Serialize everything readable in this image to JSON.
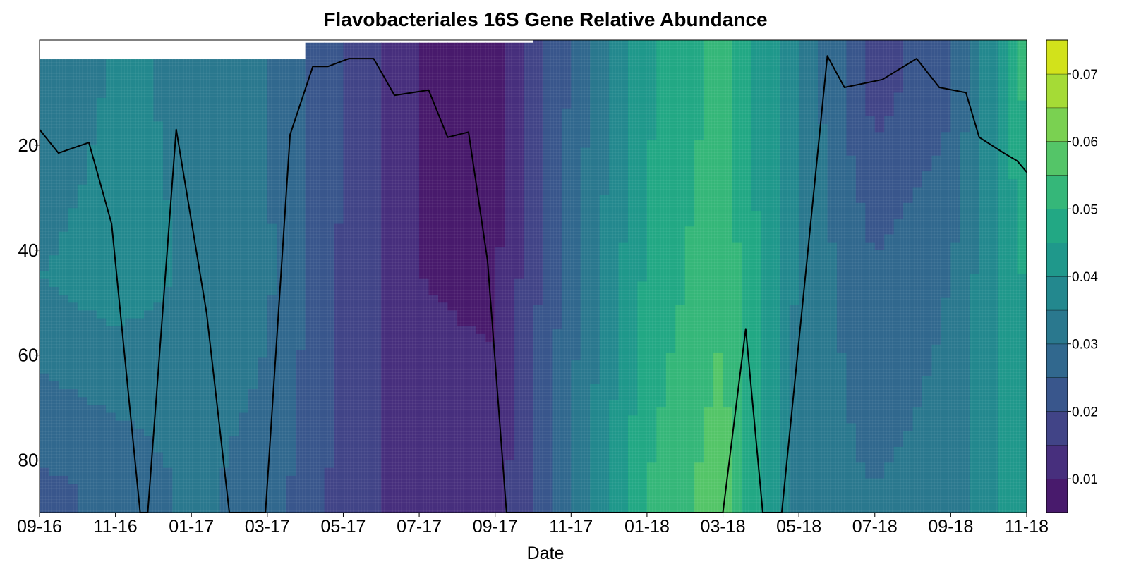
{
  "chart_data": {
    "type": "heatmap",
    "title": "Flavobacteriales 16S Gene Relative Abundance",
    "xlabel": "Date",
    "ylabel": "",
    "x_tick_labels": [
      "09-16",
      "11-16",
      "01-17",
      "03-17",
      "05-17",
      "07-17",
      "09-17",
      "11-17",
      "01-18",
      "03-18",
      "05-18",
      "07-18",
      "09-18",
      "11-18"
    ],
    "x_tick_values_month_index": [
      0,
      2,
      4,
      6,
      8,
      10,
      12,
      14,
      16,
      18,
      20,
      22,
      24,
      26
    ],
    "x_range_month_index": [
      0,
      26
    ],
    "y_tick_labels": [
      "20",
      "40",
      "60",
      "80"
    ],
    "y_tick_values": [
      20,
      40,
      60,
      80
    ],
    "y_range": [
      0,
      90
    ],
    "y_inverted": true,
    "colorbar": {
      "colormap": "viridis",
      "levels": [
        0.005,
        0.01,
        0.015,
        0.02,
        0.025,
        0.03,
        0.035,
        0.04,
        0.045,
        0.05,
        0.055,
        0.06,
        0.065,
        0.07,
        0.075
      ],
      "tick_labels": [
        "0.01",
        "0.02",
        "0.03",
        "0.04",
        "0.05",
        "0.06",
        "0.07"
      ],
      "tick_values": [
        0.01,
        0.02,
        0.03,
        0.04,
        0.05,
        0.06,
        0.07
      ],
      "colors": [
        "#440154",
        "#481a6c",
        "#472f7d",
        "#414487",
        "#39568c",
        "#31688e",
        "#2a788e",
        "#23888e",
        "#1f988b",
        "#22a884",
        "#35b779",
        "#54c568",
        "#7ad151",
        "#a5db36",
        "#d2e21b",
        "#fde725"
      ]
    },
    "heatmap_columns_month_index": [
      0,
      2,
      4,
      6,
      8,
      10,
      12,
      14,
      16,
      18,
      20,
      22,
      24,
      26
    ],
    "heatmap_columns_top_depth": [
      3.5,
      3.5,
      3.5,
      3.5,
      0.5,
      0.5,
      0.5,
      -0.5,
      -0.5,
      -0.5,
      -2,
      -2,
      -2,
      -2
    ],
    "heatmap_values_by_column": [
      [
        0.03,
        0.035,
        0.024
      ],
      [
        0.036,
        0.038,
        0.026
      ],
      [
        0.034,
        0.034,
        0.031
      ],
      [
        0.03,
        0.031,
        0.028
      ],
      [
        0.02,
        0.019,
        0.018
      ],
      [
        0.01,
        0.01,
        0.012
      ],
      [
        0.008,
        0.009,
        0.012
      ],
      [
        0.026,
        0.028,
        0.03
      ],
      [
        0.044,
        0.046,
        0.05
      ],
      [
        0.052,
        0.054,
        0.058
      ],
      [
        0.035,
        0.034,
        0.032
      ],
      [
        0.018,
        0.026,
        0.03
      ],
      [
        0.024,
        0.03,
        0.032
      ],
      [
        0.052,
        0.046,
        0.044
      ]
    ],
    "heatmap_value_depths": [
      10,
      45,
      85
    ],
    "series": [
      {
        "type": "line",
        "color": "#000000",
        "x_month_index": [
          0,
          0.5,
          1.3,
          1.9,
          2.65,
          2.85,
          3.6,
          4.4,
          5.0,
          5.95,
          6.6,
          7.2,
          7.6,
          8.15,
          8.8,
          9.35,
          10.25,
          10.75,
          11.3,
          11.8,
          12.3,
          12.85,
          13.4,
          14.0,
          14.6,
          15.1,
          15.75,
          16.25,
          18.0,
          18.6,
          19.05,
          19.55,
          20.75,
          21.2,
          22.2,
          23.1,
          23.7,
          24.4,
          24.75,
          25.4,
          25.75,
          26.45
        ],
        "y": [
          17,
          21.5,
          19.5,
          35,
          90,
          90,
          17,
          52,
          90,
          90,
          18,
          5,
          5,
          3.5,
          3.5,
          10.5,
          9.5,
          18.5,
          17.5,
          42,
          90,
          90,
          90,
          90,
          90,
          90,
          90,
          90,
          90,
          55,
          90,
          90,
          3,
          9,
          7.5,
          3.5,
          9,
          10,
          18.5,
          21.5,
          23,
          29
        ]
      }
    ]
  }
}
